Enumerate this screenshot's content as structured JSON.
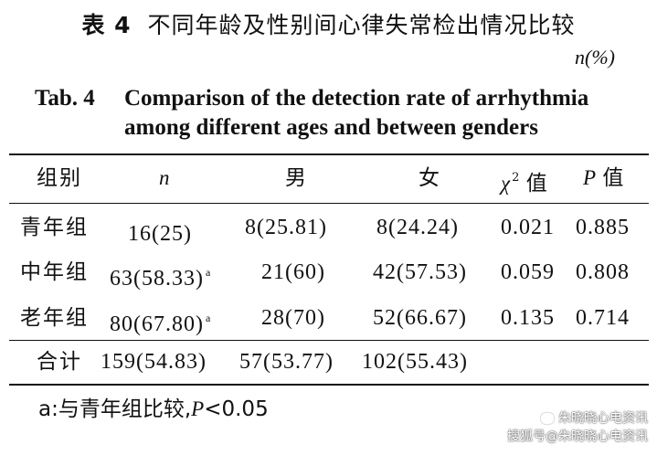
{
  "title_cn": {
    "number": "表 4",
    "text": "不同年龄及性别间心律失常检出情况比较"
  },
  "unit": "n(%)",
  "title_en": {
    "number": "Tab. 4",
    "line1": "Comparison of the detection rate of arrhythmia",
    "line2": "among different ages and between genders"
  },
  "table": {
    "headers": {
      "group": "组别",
      "n": "n",
      "male": "男",
      "female": "女",
      "chi_symbol": "χ",
      "chi_sup": "2",
      "chi_suffix": "值",
      "p_symbol": "P",
      "p_suffix": "值"
    },
    "rows": [
      {
        "group": "青年组",
        "n": "16(25)",
        "n_sup": "",
        "male": "8(25.81)",
        "female": "8(24.24)",
        "chi2": "0.021",
        "p": "0.885"
      },
      {
        "group": "中年组",
        "n": "63(58.33)",
        "n_sup": "a",
        "male": "21(60)",
        "female": "42(57.53)",
        "chi2": "0.059",
        "p": "0.808"
      },
      {
        "group": "老年组",
        "n": "80(67.80)",
        "n_sup": "a",
        "male": "28(70)",
        "female": "52(66.67)",
        "chi2": "0.135",
        "p": "0.714"
      }
    ],
    "total": {
      "group": "合计",
      "n": "159(54.83)",
      "male": "57(53.77)",
      "female": "102(55.43)"
    }
  },
  "footnote": {
    "prefix": "a:与青年组比较,",
    "p_symbol": "P",
    "suffix": "<0.05"
  },
  "watermark": {
    "line1": "朱晓晓心电资讯",
    "line2": "搜狐号@朱晓晓心电资讯"
  }
}
